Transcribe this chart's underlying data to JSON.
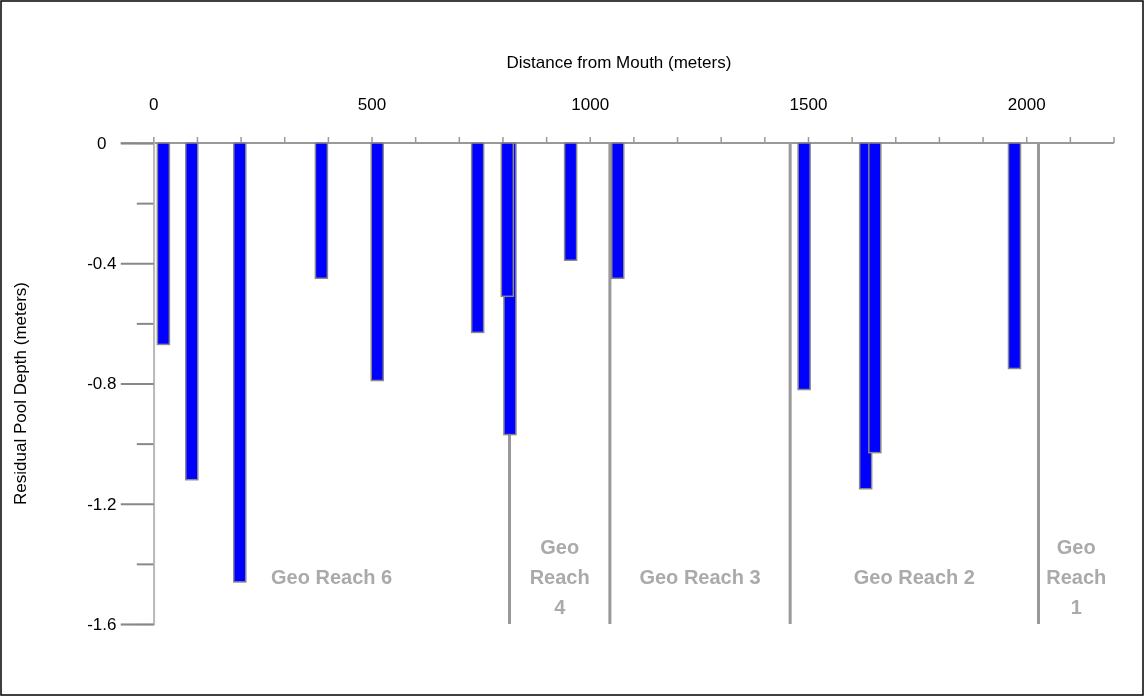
{
  "chart_data": {
    "type": "bar",
    "xlabel": "Distance from Mouth (meters)",
    "ylabel": "Residual Pool Depth (meters)",
    "x": [
      22,
      87,
      197,
      384,
      512,
      742,
      810,
      816,
      955,
      1063,
      1490,
      1631,
      1652,
      1972
    ],
    "values": [
      -0.67,
      -1.12,
      -1.46,
      -0.45,
      -0.79,
      -0.63,
      -0.51,
      -0.97,
      -0.39,
      -0.45,
      -0.82,
      -1.15,
      -1.03,
      -0.75
    ],
    "color": "#0000ff",
    "xlim": [
      0,
      2200
    ],
    "xticks": [
      0,
      {
        "value": 100,
        "label": null
      },
      {
        "value": 200,
        "label": null
      },
      {
        "value": 300,
        "label": null
      },
      {
        "value": 400,
        "label": null
      },
      500,
      {
        "value": 600,
        "label": null
      },
      {
        "value": 700,
        "label": null
      },
      {
        "value": 800,
        "label": null
      },
      {
        "value": 900,
        "label": null
      },
      1000,
      {
        "value": 1100,
        "label": null
      },
      {
        "value": 1200,
        "label": null
      },
      {
        "value": 1300,
        "label": null
      },
      {
        "value": 1400,
        "label": null
      },
      1500,
      {
        "value": 1600,
        "label": null
      },
      {
        "value": 1700,
        "label": null
      },
      {
        "value": 1800,
        "label": null
      },
      {
        "value": 1900,
        "label": null
      },
      2000,
      {
        "value": 2100,
        "label": null
      },
      {
        "value": 2200,
        "label": null
      }
    ],
    "ylim": [
      -1.6,
      0
    ],
    "yticks": [
      0,
      -0.4,
      -0.8,
      -1.2,
      -1.6
    ],
    "ref_lines": [
      {
        "axis": "x",
        "value": 815,
        "color": "#999999"
      },
      {
        "axis": "x",
        "value": 1045,
        "color": "#999999"
      },
      {
        "axis": "x",
        "value": 1458,
        "color": "#999999"
      },
      {
        "axis": "x",
        "value": 2027,
        "color": "#999999"
      }
    ],
    "annotations": [
      "Geo Reach 6",
      "Geo\nReach\n4",
      "Geo Reach 3",
      "Geo Reach 2",
      "Geo\nReach\n1"
    ]
  }
}
